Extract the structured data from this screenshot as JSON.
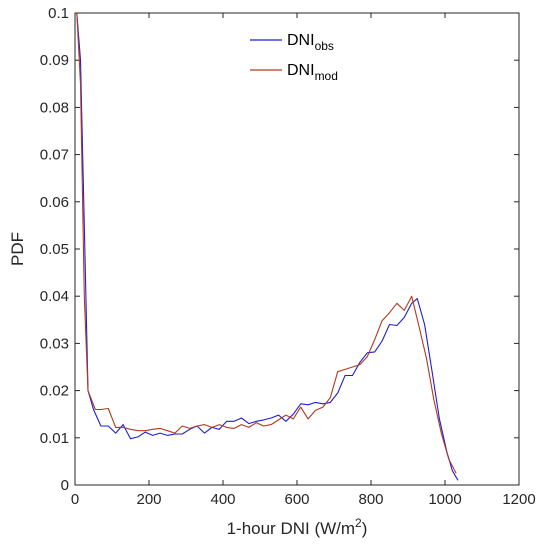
{
  "chart_data": {
    "type": "line",
    "xlabel": "1-hour DNI (W/m",
    "xlabel_sup": "2",
    "xlabel_end": ")",
    "ylabel": "PDF",
    "xlim": [
      0,
      1200
    ],
    "ylim": [
      0,
      0.1
    ],
    "xticks": [
      "0",
      "200",
      "400",
      "600",
      "800",
      "1000",
      "1200"
    ],
    "yticks": [
      "0",
      "0.01",
      "0.02",
      "0.03",
      "0.04",
      "0.05",
      "0.06",
      "0.07",
      "0.08",
      "0.09",
      "0.1"
    ],
    "xtick_values": [
      0,
      200,
      400,
      600,
      800,
      1000,
      1200
    ],
    "ytick_values": [
      0,
      0.01,
      0.02,
      0.03,
      0.04,
      0.05,
      0.06,
      0.07,
      0.08,
      0.09,
      0.1
    ],
    "legend_position": "top-center",
    "grid": false,
    "series": [
      {
        "name": "DNI",
        "name_sub": "obs",
        "color": "#1f1fd6",
        "points": [
          [
            5,
            0.1
          ],
          [
            15,
            0.09
          ],
          [
            25,
            0.055
          ],
          [
            35,
            0.02
          ],
          [
            50,
            0.016
          ],
          [
            70,
            0.0125
          ],
          [
            90,
            0.0125
          ],
          [
            110,
            0.011
          ],
          [
            130,
            0.0128
          ],
          [
            150,
            0.0098
          ],
          [
            170,
            0.0102
          ],
          [
            190,
            0.0112
          ],
          [
            210,
            0.0105
          ],
          [
            230,
            0.011
          ],
          [
            250,
            0.0105
          ],
          [
            270,
            0.0108
          ],
          [
            290,
            0.0108
          ],
          [
            310,
            0.0118
          ],
          [
            330,
            0.0125
          ],
          [
            350,
            0.011
          ],
          [
            370,
            0.0122
          ],
          [
            390,
            0.0118
          ],
          [
            410,
            0.0135
          ],
          [
            430,
            0.0135
          ],
          [
            450,
            0.0142
          ],
          [
            470,
            0.013
          ],
          [
            490,
            0.0135
          ],
          [
            510,
            0.0138
          ],
          [
            530,
            0.0142
          ],
          [
            550,
            0.0148
          ],
          [
            570,
            0.0135
          ],
          [
            590,
            0.015
          ],
          [
            610,
            0.0172
          ],
          [
            630,
            0.017
          ],
          [
            650,
            0.0175
          ],
          [
            670,
            0.0172
          ],
          [
            690,
            0.0175
          ],
          [
            710,
            0.0195
          ],
          [
            730,
            0.0232
          ],
          [
            750,
            0.0232
          ],
          [
            770,
            0.026
          ],
          [
            790,
            0.028
          ],
          [
            810,
            0.0282
          ],
          [
            830,
            0.0305
          ],
          [
            850,
            0.034
          ],
          [
            870,
            0.0338
          ],
          [
            890,
            0.0355
          ],
          [
            910,
            0.0385
          ],
          [
            925,
            0.0395
          ],
          [
            945,
            0.034
          ],
          [
            965,
            0.024
          ],
          [
            985,
            0.014
          ],
          [
            1005,
            0.007
          ],
          [
            1020,
            0.003
          ],
          [
            1035,
            0.001
          ]
        ]
      },
      {
        "name": "DNI",
        "name_sub": "mod",
        "color": "#b03a1e",
        "points": [
          [
            5,
            0.1
          ],
          [
            15,
            0.085
          ],
          [
            25,
            0.04
          ],
          [
            35,
            0.02
          ],
          [
            55,
            0.016
          ],
          [
            70,
            0.016
          ],
          [
            90,
            0.0162
          ],
          [
            110,
            0.0122
          ],
          [
            130,
            0.0122
          ],
          [
            150,
            0.0118
          ],
          [
            170,
            0.0115
          ],
          [
            190,
            0.0115
          ],
          [
            210,
            0.0118
          ],
          [
            230,
            0.012
          ],
          [
            250,
            0.0115
          ],
          [
            270,
            0.011
          ],
          [
            290,
            0.0125
          ],
          [
            310,
            0.012
          ],
          [
            330,
            0.0125
          ],
          [
            350,
            0.0128
          ],
          [
            370,
            0.0122
          ],
          [
            390,
            0.0128
          ],
          [
            410,
            0.0122
          ],
          [
            430,
            0.012
          ],
          [
            450,
            0.0128
          ],
          [
            470,
            0.0122
          ],
          [
            490,
            0.0132
          ],
          [
            510,
            0.0125
          ],
          [
            530,
            0.0128
          ],
          [
            550,
            0.0138
          ],
          [
            570,
            0.0148
          ],
          [
            590,
            0.014
          ],
          [
            610,
            0.0165
          ],
          [
            630,
            0.014
          ],
          [
            650,
            0.0158
          ],
          [
            670,
            0.0165
          ],
          [
            690,
            0.0185
          ],
          [
            710,
            0.024
          ],
          [
            730,
            0.0245
          ],
          [
            750,
            0.025
          ],
          [
            770,
            0.0255
          ],
          [
            790,
            0.0272
          ],
          [
            810,
            0.0308
          ],
          [
            830,
            0.0348
          ],
          [
            850,
            0.0365
          ],
          [
            870,
            0.0385
          ],
          [
            890,
            0.037
          ],
          [
            910,
            0.04
          ],
          [
            930,
            0.0335
          ],
          [
            950,
            0.0268
          ],
          [
            970,
            0.018
          ],
          [
            990,
            0.011
          ],
          [
            1010,
            0.0055
          ],
          [
            1030,
            0.0025
          ]
        ]
      }
    ]
  }
}
